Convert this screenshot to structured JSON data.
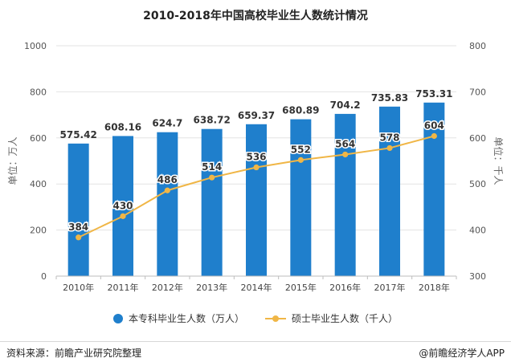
{
  "title": "2010-2018年中国高校毕业生人数统计情况",
  "legend": {
    "bar_label": "本专科毕业生人数（万人）",
    "line_label": "硕士毕业生人数（千人）"
  },
  "footer": {
    "source": "资料来源：前瞻产业研究院整理",
    "brand": "@前瞻经济学人APP"
  },
  "chart_data": {
    "type": "bar",
    "title": "2010-2018年中国高校毕业生人数统计情况",
    "categories": [
      "2010年",
      "2011年",
      "2012年",
      "2013年",
      "2014年",
      "2015年",
      "2016年",
      "2017年",
      "2018年"
    ],
    "series": [
      {
        "name": "本专科毕业生人数（万人）",
        "type": "bar",
        "axis": "left",
        "color": "#1f7fcc",
        "values": [
          575.42,
          608.16,
          624.7,
          638.72,
          659.37,
          680.89,
          704.2,
          735.83,
          753.31
        ],
        "value_labels": [
          "575.42",
          "608.16",
          "624.7",
          "638.72",
          "659.37",
          "680.89",
          "704.2",
          "735.83",
          "753.31"
        ]
      },
      {
        "name": "硕士毕业生人数（千人）",
        "type": "line",
        "axis": "right",
        "color": "#f0b646",
        "values": [
          384,
          430,
          486,
          514,
          536,
          552,
          564,
          578,
          604
        ],
        "value_labels": [
          "384",
          "430",
          "486",
          "514",
          "536",
          "552",
          "564",
          "578",
          "604"
        ]
      }
    ],
    "ylabel": "单位：万人",
    "ylim": [
      0,
      1000
    ],
    "yticks": [
      "0",
      "200",
      "400",
      "600",
      "800",
      "1000"
    ],
    "y2label": "单位：千人",
    "y2lim": [
      300,
      800
    ],
    "y2ticks": [
      "300",
      "400",
      "500",
      "600",
      "700",
      "800"
    ],
    "grid": true,
    "legend_position": "bottom"
  }
}
